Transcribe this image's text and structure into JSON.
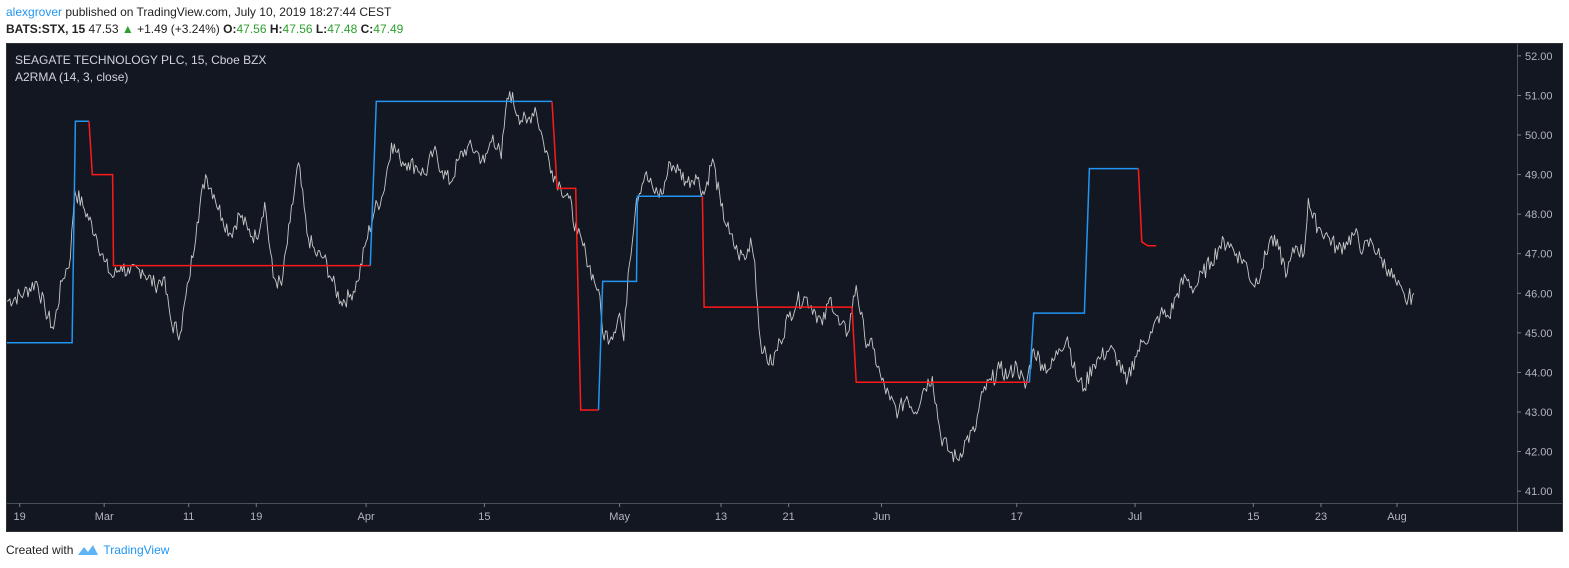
{
  "header": {
    "author": "alexgrover",
    "published_text": "published on TradingView.com, July 10, 2019 18:27:44 CEST",
    "symbol": "BATS:STX, 15",
    "last": "47.53",
    "change": "+1.49 (+3.24%)",
    "o_label": "O:",
    "o_value": "47.56",
    "h_label": "H:",
    "h_value": "47.56",
    "l_label": "L:",
    "l_value": "47.48",
    "c_label": "C:",
    "c_value": "47.49"
  },
  "footer": {
    "created_with": "Created with",
    "brand": "TradingView"
  },
  "colors": {
    "background": "#131722",
    "price_line": "#c8c8c8",
    "ma_up": "#2196f3",
    "ma_down": "#ff1a1a",
    "change_up": "#2ca02c"
  },
  "chart_data": {
    "type": "line",
    "title": "SEAGATE TECHNOLOGY PLC, 15, Cboe BZX",
    "subtitle": "A2RMA (14, 3, close)",
    "ylim": [
      40.7,
      52.3
    ],
    "y_ticks": [
      "52.00",
      "51.00",
      "50.00",
      "49.00",
      "48.00",
      "47.00",
      "46.00",
      "45.00",
      "44.00",
      "43.00",
      "42.00",
      "41.00"
    ],
    "x_ticks": [
      {
        "label": "19",
        "day": 0
      },
      {
        "label": "Mar",
        "day": 10
      },
      {
        "label": "11",
        "day": 20
      },
      {
        "label": "19",
        "day": 28
      },
      {
        "label": "Apr",
        "day": 41
      },
      {
        "label": "15",
        "day": 55
      },
      {
        "label": "May",
        "day": 71
      },
      {
        "label": "13",
        "day": 83
      },
      {
        "label": "21",
        "day": 91
      },
      {
        "label": "Jun",
        "day": 102
      },
      {
        "label": "17",
        "day": 118
      },
      {
        "label": "Jul",
        "day": 132
      },
      {
        "label": "15",
        "day": 146
      },
      {
        "label": "23",
        "day": 154
      },
      {
        "label": "Aug",
        "day": 163
      }
    ],
    "xlim": [
      -1.5,
      177.2
    ],
    "price_keypoints": [
      [
        -1.5,
        45.8
      ],
      [
        0.5,
        46.0
      ],
      [
        2,
        46.3
      ],
      [
        3,
        45.6
      ],
      [
        4,
        45.1
      ],
      [
        5,
        46.3
      ],
      [
        6,
        46.9
      ],
      [
        6.5,
        48.6
      ],
      [
        7.5,
        48.2
      ],
      [
        9,
        47.5
      ],
      [
        10,
        46.8
      ],
      [
        11,
        46.4
      ],
      [
        12,
        46.7
      ],
      [
        13,
        46.5
      ],
      [
        14.5,
        46.6
      ],
      [
        16,
        46.2
      ],
      [
        17,
        46.4
      ],
      [
        18,
        45.2
      ],
      [
        19,
        45.0
      ],
      [
        20,
        46.3
      ],
      [
        21,
        47.8
      ],
      [
        22,
        49.0
      ],
      [
        23,
        48.5
      ],
      [
        24,
        47.9
      ],
      [
        25,
        47.5
      ],
      [
        26,
        48.0
      ],
      [
        27,
        47.6
      ],
      [
        28,
        47.4
      ],
      [
        29,
        48.3
      ],
      [
        30,
        46.4
      ],
      [
        31,
        46.2
      ],
      [
        32,
        47.8
      ],
      [
        33,
        49.3
      ],
      [
        34,
        47.5
      ],
      [
        35,
        47.0
      ],
      [
        36,
        46.9
      ],
      [
        37,
        46.3
      ],
      [
        38,
        45.8
      ],
      [
        39,
        45.9
      ],
      [
        40,
        46.3
      ],
      [
        41,
        47.3
      ],
      [
        42,
        48.1
      ],
      [
        43,
        48.5
      ],
      [
        44,
        49.8
      ],
      [
        45,
        49.4
      ],
      [
        46,
        49.3
      ],
      [
        47,
        49.2
      ],
      [
        48,
        49.0
      ],
      [
        49,
        49.6
      ],
      [
        50,
        49.1
      ],
      [
        51,
        48.8
      ],
      [
        52,
        49.4
      ],
      [
        53,
        49.7
      ],
      [
        54,
        49.6
      ],
      [
        55,
        49.3
      ],
      [
        56,
        50.0
      ],
      [
        57,
        49.4
      ],
      [
        57.5,
        50.6
      ],
      [
        58,
        51.1
      ],
      [
        59,
        50.5
      ],
      [
        60,
        50.3
      ],
      [
        61,
        50.7
      ],
      [
        62,
        49.8
      ],
      [
        63,
        49.1
      ],
      [
        64,
        48.7
      ],
      [
        65,
        48.4
      ],
      [
        66,
        47.5
      ],
      [
        67,
        47.0
      ],
      [
        68,
        46.3
      ],
      [
        68.5,
        46.1
      ],
      [
        69,
        45.0
      ],
      [
        70,
        44.9
      ],
      [
        71,
        45.5
      ],
      [
        71.5,
        44.8
      ],
      [
        72,
        46.5
      ],
      [
        73,
        48.4
      ],
      [
        74,
        49.0
      ],
      [
        75,
        48.6
      ],
      [
        76,
        48.5
      ],
      [
        77,
        49.3
      ],
      [
        78,
        49.1
      ],
      [
        79,
        48.8
      ],
      [
        80,
        49.0
      ],
      [
        81,
        48.5
      ],
      [
        82,
        49.4
      ],
      [
        83,
        48.2
      ],
      [
        84,
        47.5
      ],
      [
        85,
        47.0
      ],
      [
        86,
        46.9
      ],
      [
        86.5,
        47.4
      ],
      [
        87,
        46.8
      ],
      [
        87.5,
        45.1
      ],
      [
        88,
        44.5
      ],
      [
        89,
        44.2
      ],
      [
        90,
        44.8
      ],
      [
        91,
        45.4
      ],
      [
        92,
        45.8
      ],
      [
        93,
        45.9
      ],
      [
        94,
        45.6
      ],
      [
        95,
        45.2
      ],
      [
        96,
        45.9
      ],
      [
        97,
        45.2
      ],
      [
        98,
        45.0
      ],
      [
        99,
        46.2
      ],
      [
        100,
        44.9
      ],
      [
        101,
        44.6
      ],
      [
        102,
        43.8
      ],
      [
        103,
        43.3
      ],
      [
        104,
        43.0
      ],
      [
        105,
        43.4
      ],
      [
        106,
        43.0
      ],
      [
        107,
        43.6
      ],
      [
        108,
        43.9
      ],
      [
        109,
        42.4
      ],
      [
        110,
        42.0
      ],
      [
        111,
        41.8
      ],
      [
        112,
        42.3
      ],
      [
        113,
        42.5
      ],
      [
        114,
        43.5
      ],
      [
        115,
        43.8
      ],
      [
        116,
        44.1
      ],
      [
        117,
        43.9
      ],
      [
        118,
        44.2
      ],
      [
        119,
        43.6
      ],
      [
        120,
        44.6
      ],
      [
        121,
        44.2
      ],
      [
        122,
        44.1
      ],
      [
        123,
        44.6
      ],
      [
        124,
        44.9
      ],
      [
        125,
        43.9
      ],
      [
        126,
        43.6
      ],
      [
        127,
        44.2
      ],
      [
        128,
        44.4
      ],
      [
        129,
        44.6
      ],
      [
        130,
        44.3
      ],
      [
        131,
        43.7
      ],
      [
        132,
        44.4
      ],
      [
        133,
        44.8
      ],
      [
        134,
        45.0
      ],
      [
        135,
        45.5
      ],
      [
        136,
        45.4
      ],
      [
        137,
        46.0
      ],
      [
        138,
        46.4
      ],
      [
        139,
        46.1
      ],
      [
        140,
        46.5
      ],
      [
        141,
        46.8
      ],
      [
        142,
        47.2
      ],
      [
        143,
        47.3
      ],
      [
        144,
        47.0
      ],
      [
        145,
        46.8
      ],
      [
        146,
        46.2
      ],
      [
        147,
        46.6
      ],
      [
        148,
        47.4
      ],
      [
        149,
        47.1
      ],
      [
        150,
        46.5
      ],
      [
        151,
        47.2
      ],
      [
        152,
        47.0
      ],
      [
        152.5,
        48.4
      ],
      [
        153,
        47.9
      ],
      [
        154,
        47.6
      ],
      [
        155,
        47.4
      ],
      [
        156,
        47.1
      ],
      [
        157,
        47.3
      ],
      [
        158,
        47.5
      ],
      [
        159,
        47.1
      ],
      [
        160,
        47.3
      ],
      [
        161,
        46.9
      ],
      [
        162,
        46.6
      ],
      [
        163,
        46.2
      ],
      [
        164,
        45.8
      ],
      [
        165,
        46.0
      ]
    ],
    "ma_segments": [
      {
        "color": "up",
        "points": [
          [
            -1.5,
            44.75
          ],
          [
            6.2,
            44.75
          ],
          [
            6.6,
            50.35
          ],
          [
            8.2,
            50.35
          ]
        ]
      },
      {
        "color": "down",
        "points": [
          [
            8.2,
            50.35
          ],
          [
            8.6,
            49.0
          ],
          [
            11,
            49.0
          ],
          [
            11.1,
            46.7
          ],
          [
            41.5,
            46.7
          ]
        ]
      },
      {
        "color": "up",
        "points": [
          [
            41.5,
            46.7
          ],
          [
            42.2,
            50.85
          ],
          [
            63.0,
            50.85
          ]
        ]
      },
      {
        "color": "down",
        "points": [
          [
            63.0,
            50.85
          ],
          [
            63.6,
            48.65
          ],
          [
            65.8,
            48.65
          ],
          [
            66.4,
            43.05
          ],
          [
            68.5,
            43.05
          ]
        ]
      },
      {
        "color": "up",
        "points": [
          [
            68.5,
            43.05
          ],
          [
            69.0,
            46.3
          ],
          [
            73.0,
            46.3
          ],
          [
            73.1,
            48.45
          ],
          [
            80.8,
            48.45
          ]
        ]
      },
      {
        "color": "down",
        "points": [
          [
            80.8,
            48.45
          ],
          [
            81.0,
            45.65
          ],
          [
            98.5,
            45.65
          ],
          [
            99.0,
            43.75
          ],
          [
            119.5,
            43.75
          ]
        ]
      },
      {
        "color": "up",
        "points": [
          [
            119.5,
            43.75
          ],
          [
            120.0,
            45.5
          ],
          [
            126.0,
            45.5
          ],
          [
            126.6,
            49.15
          ],
          [
            132.4,
            49.15
          ]
        ]
      },
      {
        "color": "down",
        "points": [
          [
            132.4,
            49.15
          ],
          [
            132.8,
            47.3
          ],
          [
            133.5,
            47.2
          ],
          [
            134.5,
            47.2
          ]
        ]
      }
    ]
  }
}
